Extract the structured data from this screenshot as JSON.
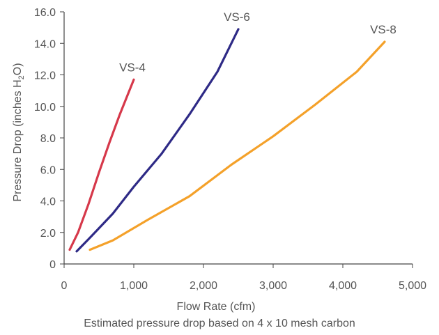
{
  "chart_data": {
    "type": "line",
    "xlabel": "Flow Rate (cfm)",
    "ylabel": "Pressure Drop (inches H2O)",
    "caption": "Estimated pressure drop based on 4 x 10 mesh carbon",
    "xlim": [
      0,
      5000
    ],
    "ylim": [
      0,
      16
    ],
    "xticks": [
      "0",
      "1,000",
      "2,000",
      "3,000",
      "4,000",
      "5,000"
    ],
    "yticks": [
      "0",
      "2.0",
      "4.0",
      "6.0",
      "8.0",
      "10.0",
      "12.0",
      "14.0",
      "16.0"
    ],
    "xtick_values": [
      0,
      1000,
      2000,
      3000,
      4000,
      5000
    ],
    "ytick_values": [
      0,
      2,
      4,
      6,
      8,
      10,
      12,
      14,
      16
    ],
    "grid": false,
    "series": [
      {
        "name": "VS-4",
        "color": "#d6384a",
        "points": [
          [
            80,
            0.9
          ],
          [
            200,
            2.0
          ],
          [
            350,
            3.8
          ],
          [
            500,
            5.8
          ],
          [
            650,
            7.7
          ],
          [
            800,
            9.5
          ],
          [
            1000,
            11.7
          ]
        ]
      },
      {
        "name": "VS-6",
        "color": "#2e2a86",
        "points": [
          [
            180,
            0.8
          ],
          [
            400,
            1.8
          ],
          [
            700,
            3.2
          ],
          [
            1000,
            4.9
          ],
          [
            1400,
            7.0
          ],
          [
            1800,
            9.5
          ],
          [
            2200,
            12.2
          ],
          [
            2500,
            14.9
          ]
        ]
      },
      {
        "name": "VS-8",
        "color": "#f4a12a",
        "points": [
          [
            370,
            0.9
          ],
          [
            700,
            1.5
          ],
          [
            1200,
            2.8
          ],
          [
            1800,
            4.3
          ],
          [
            2400,
            6.3
          ],
          [
            3000,
            8.1
          ],
          [
            3600,
            10.1
          ],
          [
            4200,
            12.2
          ],
          [
            4600,
            14.1
          ]
        ]
      }
    ]
  }
}
